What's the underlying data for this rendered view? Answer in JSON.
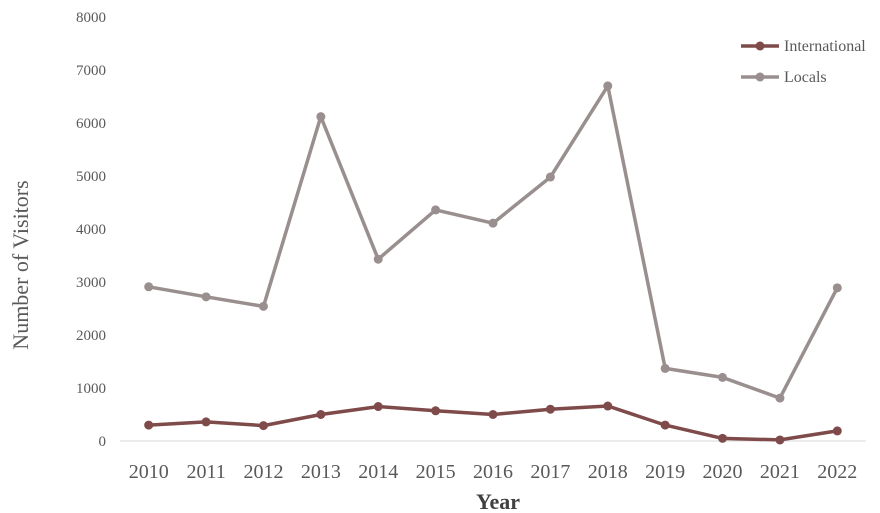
{
  "chart_data": {
    "type": "line",
    "title": "",
    "xlabel": "Year",
    "ylabel": "Number of Visitors",
    "categories": [
      "2010",
      "2011",
      "2012",
      "2013",
      "2014",
      "2015",
      "2016",
      "2017",
      "2018",
      "2019",
      "2020",
      "2021",
      "2022"
    ],
    "ylim": [
      0,
      8000
    ],
    "yticks": [
      "0",
      "1000",
      "2000",
      "3000",
      "4000",
      "5000",
      "6000",
      "7000",
      "8000"
    ],
    "grid": false,
    "legend_position": "top-right",
    "series": [
      {
        "name": "International",
        "color": "#7f4a4a",
        "values": [
          300,
          360,
          290,
          500,
          650,
          570,
          500,
          600,
          660,
          300,
          50,
          20,
          190
        ]
      },
      {
        "name": "Locals",
        "color": "#9a8f8f",
        "values": [
          2910,
          2720,
          2540,
          6120,
          3430,
          4360,
          4110,
          4980,
          6700,
          1370,
          1200,
          810,
          2890
        ]
      }
    ]
  }
}
